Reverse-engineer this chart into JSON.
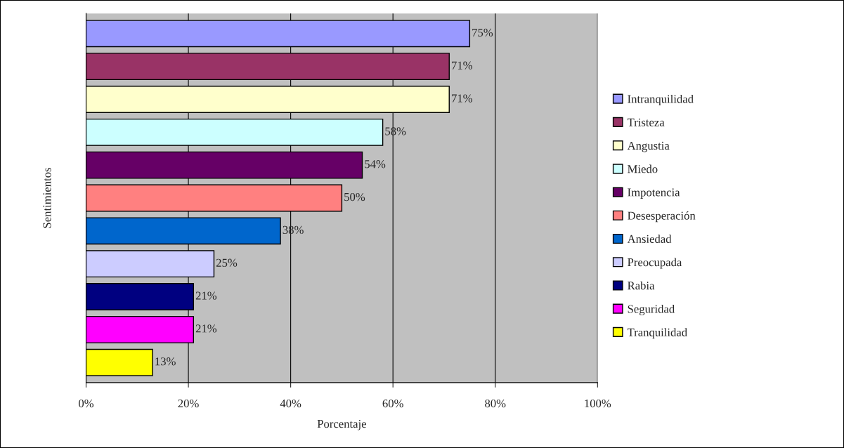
{
  "chart_data": {
    "type": "bar",
    "orientation": "horizontal",
    "xlabel": "Porcentaje",
    "ylabel": "Sentimientos",
    "categories": [
      null
    ],
    "series": [
      {
        "name": "Intranquilidad",
        "color": "#9999ff",
        "values": [
          75
        ],
        "value_labels": [
          "75%"
        ]
      },
      {
        "name": "Tristeza",
        "color": "#993366",
        "values": [
          71
        ],
        "value_labels": [
          "71%"
        ]
      },
      {
        "name": "Angustia",
        "color": "#ffffcc",
        "values": [
          71
        ],
        "value_labels": [
          "71%"
        ]
      },
      {
        "name": "Miedo",
        "color": "#ccffff",
        "values": [
          58
        ],
        "value_labels": [
          "58%"
        ]
      },
      {
        "name": "Impotencia",
        "color": "#660066",
        "values": [
          54
        ],
        "value_labels": [
          "54%"
        ]
      },
      {
        "name": "Desesperación",
        "color": "#ff8080",
        "values": [
          50
        ],
        "value_labels": [
          "50%"
        ]
      },
      {
        "name": "Ansiedad",
        "color": "#0066cc",
        "values": [
          38
        ],
        "value_labels": [
          "38%"
        ]
      },
      {
        "name": "Preocupada",
        "color": "#ccccff",
        "values": [
          25
        ],
        "value_labels": [
          "25%"
        ]
      },
      {
        "name": "Rabia",
        "color": "#000080",
        "values": [
          21
        ],
        "value_labels": [
          "21%"
        ]
      },
      {
        "name": "Seguridad",
        "color": "#ff00ff",
        "values": [
          21
        ],
        "value_labels": [
          "21%"
        ]
      },
      {
        "name": "Tranquilidad",
        "color": "#ffff00",
        "values": [
          13
        ],
        "value_labels": [
          "13%"
        ]
      }
    ],
    "xlim": [
      0,
      100
    ],
    "xticks": [
      {
        "value": 0,
        "label": "0%"
      },
      {
        "value": 20,
        "label": "20%"
      },
      {
        "value": 40,
        "label": "40%"
      },
      {
        "value": 60,
        "label": "60%"
      },
      {
        "value": 80,
        "label": "80%"
      },
      {
        "value": 100,
        "label": "100%"
      }
    ],
    "grid": "x",
    "legend": "right"
  }
}
